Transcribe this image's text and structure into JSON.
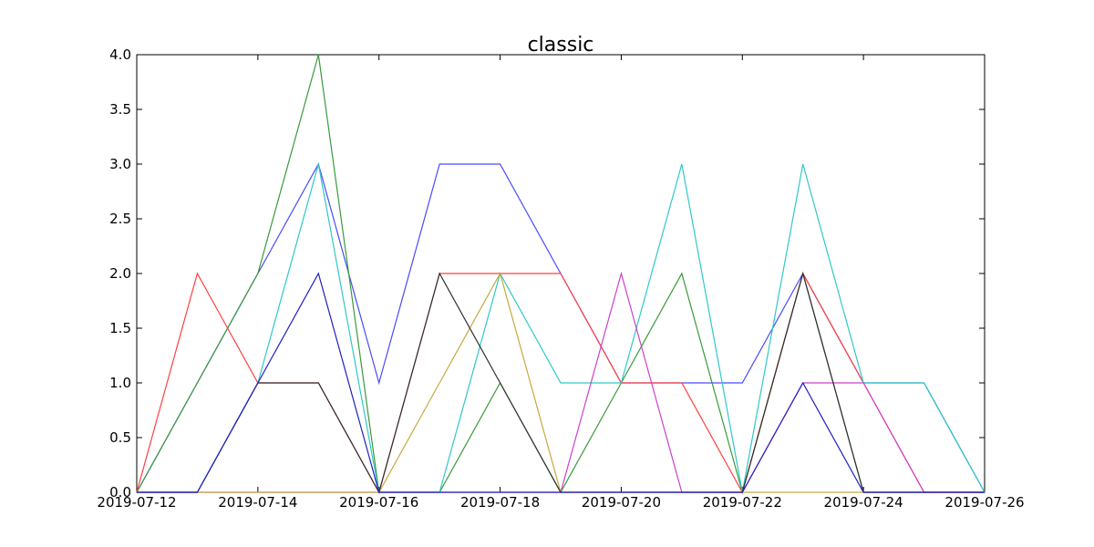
{
  "chart_data": {
    "type": "line",
    "title": "classic",
    "x": [
      "2019-07-12",
      "2019-07-13",
      "2019-07-14",
      "2019-07-15",
      "2019-07-16",
      "2019-07-17",
      "2019-07-18",
      "2019-07-19",
      "2019-07-20",
      "2019-07-21",
      "2019-07-22",
      "2019-07-23",
      "2019-07-24",
      "2019-07-25",
      "2019-07-26"
    ],
    "series": [
      {
        "color": "#4a4aff",
        "values": [
          0,
          1,
          2,
          3,
          1,
          3,
          3,
          2,
          1,
          1,
          1,
          2,
          1,
          1,
          0
        ]
      },
      {
        "color": "#3a9a3a",
        "values": [
          0,
          1,
          2,
          4,
          0,
          0,
          1,
          0,
          1,
          2,
          0,
          2,
          0,
          0,
          0
        ]
      },
      {
        "color": "#ff4040",
        "values": [
          0,
          2,
          1,
          1,
          0,
          2,
          2,
          2,
          1,
          1,
          0,
          2,
          1,
          0,
          0
        ]
      },
      {
        "color": "#30c8c8",
        "values": [
          0,
          0,
          1,
          3,
          0,
          0,
          2,
          1,
          1,
          3,
          0,
          3,
          1,
          1,
          0
        ]
      },
      {
        "color": "#cc40cc",
        "values": [
          0,
          0,
          0,
          0,
          0,
          0,
          0,
          0,
          2,
          0,
          0,
          1,
          1,
          0,
          0
        ]
      },
      {
        "color": "#c8a840",
        "values": [
          0,
          0,
          0,
          0,
          0,
          1,
          2,
          0,
          0,
          0,
          0,
          0,
          0,
          0,
          0
        ]
      },
      {
        "color": "#303030",
        "values": [
          0,
          0,
          1,
          1,
          0,
          2,
          1,
          0,
          0,
          0,
          0,
          2,
          0,
          0,
          0
        ]
      },
      {
        "color": "#2020c0",
        "values": [
          0,
          0,
          1,
          2,
          0,
          0,
          0,
          0,
          0,
          0,
          0,
          1,
          0,
          0,
          0
        ]
      }
    ],
    "xlim": [
      "2019-07-12",
      "2019-07-26"
    ],
    "xticks": [
      "2019-07-12",
      "2019-07-14",
      "2019-07-16",
      "2019-07-18",
      "2019-07-20",
      "2019-07-22",
      "2019-07-24",
      "2019-07-26"
    ],
    "ylim": [
      0,
      4
    ],
    "yticks": [
      {
        "value": 0,
        "label": "0.0"
      },
      {
        "value": 0.5,
        "label": "0.5"
      },
      {
        "value": 1,
        "label": "1.0"
      },
      {
        "value": 1.5,
        "label": "1.5"
      },
      {
        "value": 2,
        "label": "2.0"
      },
      {
        "value": 2.5,
        "label": "2.5"
      },
      {
        "value": 3,
        "label": "3.0"
      },
      {
        "value": 3.5,
        "label": "3.5"
      },
      {
        "value": 4,
        "label": "4.0"
      }
    ],
    "grid": false
  }
}
